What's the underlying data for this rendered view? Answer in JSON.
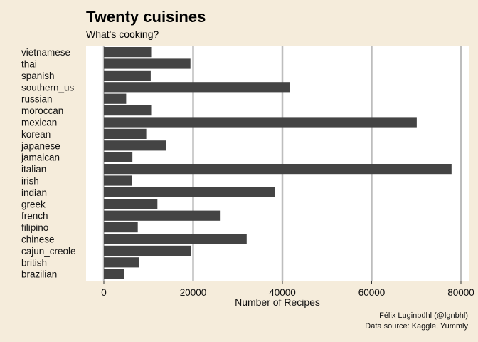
{
  "chart_data": {
    "type": "bar",
    "orientation": "horizontal",
    "title": "Twenty cuisines",
    "subtitle": "What's cooking?",
    "xlabel": "Number of Recipes",
    "ylabel": "",
    "xlim": [
      0,
      80000
    ],
    "xticks": [
      0,
      20000,
      40000,
      60000,
      80000
    ],
    "grid": "vertical",
    "categories": [
      "vietnamese",
      "thai",
      "spanish",
      "southern_us",
      "russian",
      "moroccan",
      "mexican",
      "korean",
      "japanese",
      "jamaican",
      "italian",
      "irish",
      "indian",
      "greek",
      "french",
      "filipino",
      "chinese",
      "cajun_creole",
      "british",
      "brazilian"
    ],
    "values": [
      10600,
      19400,
      10500,
      41700,
      5000,
      10600,
      70100,
      9500,
      14000,
      6400,
      77900,
      6300,
      38300,
      12000,
      26000,
      7600,
      32000,
      19500,
      7900,
      4500
    ],
    "bar_color": "#444444",
    "caption": [
      "Félix Luginbühl (@lgnbhl)",
      "Data source: Kaggle, Yummly"
    ]
  }
}
